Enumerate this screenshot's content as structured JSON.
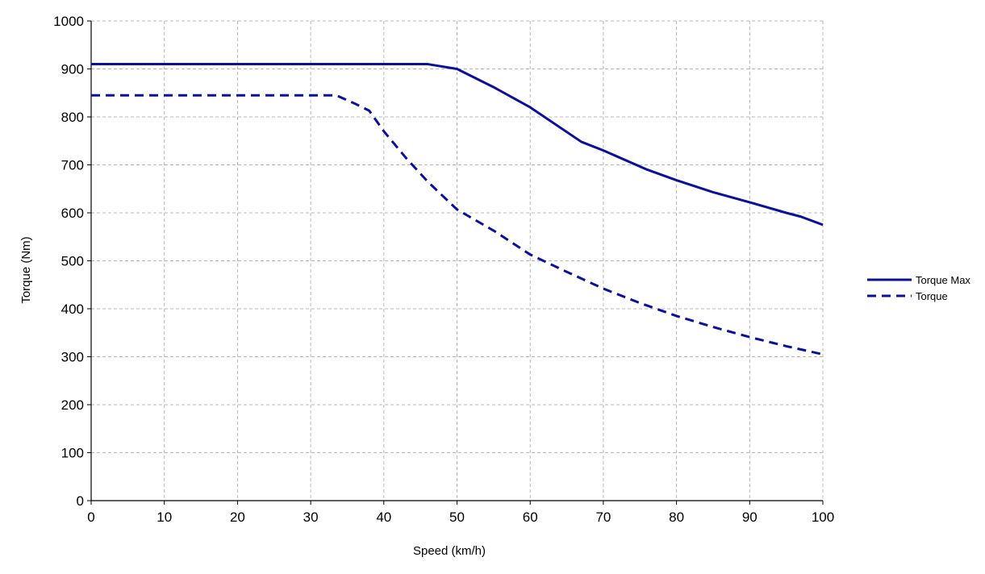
{
  "chart_data": {
    "type": "line",
    "xlabel": "Speed (km/h)",
    "ylabel": "Torque (Nm)",
    "xlim": [
      0,
      100
    ],
    "ylim": [
      0,
      1000
    ],
    "xticks": [
      "0",
      "10",
      "20",
      "30",
      "40",
      "50",
      "60",
      "70",
      "80",
      "90",
      "100"
    ],
    "yticks": [
      "0",
      "100",
      "200",
      "300",
      "400",
      "500",
      "600",
      "700",
      "800",
      "900",
      "1000"
    ],
    "grid": true,
    "legend_position": "right",
    "series": [
      {
        "name": "Torque Max",
        "style": "solid",
        "color": "#0a0f9c",
        "points": [
          [
            0,
            910
          ],
          [
            10,
            910
          ],
          [
            20,
            910
          ],
          [
            30,
            910
          ],
          [
            40,
            910
          ],
          [
            46,
            910
          ],
          [
            50,
            900
          ],
          [
            55,
            862
          ],
          [
            60,
            820
          ],
          [
            67,
            748
          ],
          [
            70,
            730
          ],
          [
            76,
            690
          ],
          [
            80,
            668
          ],
          [
            85,
            643
          ],
          [
            90,
            622
          ],
          [
            95,
            600
          ],
          [
            97,
            592
          ],
          [
            100,
            575
          ]
        ]
      },
      {
        "name": "Torque",
        "style": "dashed",
        "color": "#0a0f9c",
        "points": [
          [
            0,
            845
          ],
          [
            10,
            845
          ],
          [
            20,
            845
          ],
          [
            30,
            845
          ],
          [
            33.5,
            845
          ],
          [
            36,
            828
          ],
          [
            38,
            813
          ],
          [
            40,
            770
          ],
          [
            43,
            715
          ],
          [
            46,
            665
          ],
          [
            50,
            607
          ],
          [
            55,
            563
          ],
          [
            60,
            513
          ],
          [
            65,
            477
          ],
          [
            70,
            442
          ],
          [
            75,
            412
          ],
          [
            80,
            385
          ],
          [
            85,
            362
          ],
          [
            90,
            341
          ],
          [
            95,
            322
          ],
          [
            100,
            305
          ]
        ]
      }
    ]
  }
}
